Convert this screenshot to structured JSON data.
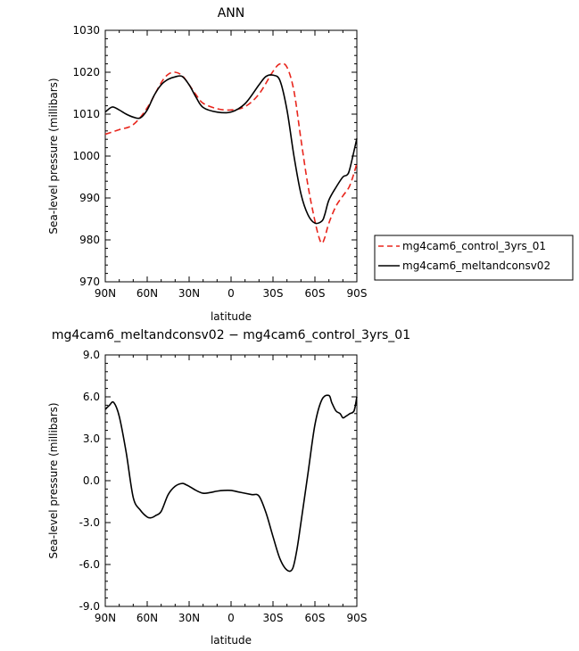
{
  "chart_data": [
    {
      "type": "line",
      "title": "ANN",
      "xlabel": "latitude",
      "ylabel": "Sea-level pressure (millibars)",
      "xlim": [
        90,
        -90
      ],
      "ylim": [
        970,
        1030
      ],
      "grid": false,
      "xticks": [
        90,
        60,
        30,
        0,
        -30,
        -60,
        -90
      ],
      "xtick_labels": [
        "90N",
        "60N",
        "30N",
        "0",
        "30S",
        "60S",
        "90S"
      ],
      "yticks": [
        970,
        980,
        990,
        1000,
        1010,
        1020,
        1030
      ],
      "ytick_labels": [
        "970",
        "980",
        "990",
        "1000",
        "1010",
        "1020",
        "1030"
      ],
      "legend_position": "outside-right",
      "series": [
        {
          "name": "mg4cam6_control_3yrs_01",
          "color": "#e8261d",
          "dash": "dashed",
          "x": [
            90,
            80,
            70,
            60,
            50,
            45,
            40,
            35,
            30,
            25,
            20,
            10,
            0,
            -10,
            -20,
            -30,
            -35,
            -40,
            -45,
            -50,
            -55,
            -60,
            -63,
            -65,
            -67,
            -70,
            -75,
            -80,
            -85,
            -90
          ],
          "y": [
            1005.2,
            1006.3,
            1007.5,
            1011.5,
            1017.5,
            1019.5,
            1020.0,
            1019.2,
            1017.0,
            1014.6,
            1012.6,
            1011.3,
            1011.0,
            1011.8,
            1014.8,
            1020.2,
            1022.0,
            1021.2,
            1015.5,
            1004.0,
            993.0,
            984.5,
            980.5,
            979.2,
            980.5,
            984.0,
            988.0,
            990.5,
            993.0,
            998.2
          ]
        },
        {
          "name": "mg4cam6_meltandconsv02",
          "color": "#000000",
          "dash": "solid",
          "x": [
            90,
            85,
            80,
            75,
            70,
            65,
            60,
            55,
            50,
            45,
            40,
            35,
            30,
            25,
            20,
            10,
            0,
            -10,
            -20,
            -25,
            -30,
            -35,
            -40,
            -45,
            -50,
            -55,
            -60,
            -65,
            -67,
            -70,
            -75,
            -80,
            -83,
            -85,
            -90
          ],
          "y": [
            1010.5,
            1011.7,
            1011.0,
            1010.0,
            1009.3,
            1009.1,
            1011.0,
            1014.5,
            1017.0,
            1018.3,
            1018.9,
            1019.0,
            1017.0,
            1014.0,
            1011.6,
            1010.5,
            1010.5,
            1012.5,
            1017.0,
            1019.0,
            1019.3,
            1018.0,
            1011.0,
            1000.0,
            991.0,
            986.0,
            984.0,
            984.5,
            986.0,
            989.5,
            992.5,
            995.0,
            995.5,
            997.0,
            1004.2
          ]
        }
      ]
    },
    {
      "type": "line",
      "title": "mg4cam6_meltandconsv02 − mg4cam6_control_3yrs_01",
      "xlabel": "latitude",
      "ylabel": "Sea-level pressure (millibars)",
      "xlim": [
        90,
        -90
      ],
      "ylim": [
        -9,
        9
      ],
      "grid": false,
      "xticks": [
        90,
        60,
        30,
        0,
        -30,
        -60,
        -90
      ],
      "xtick_labels": [
        "90N",
        "60N",
        "30N",
        "0",
        "30S",
        "60S",
        "90S"
      ],
      "yticks": [
        -9,
        -6,
        -3,
        0,
        3,
        6,
        9
      ],
      "ytick_labels": [
        "-9.0",
        "-6.0",
        "-3.0",
        "0.0",
        "3.0",
        "6.0",
        "9.0"
      ],
      "series": [
        {
          "color": "#000000",
          "dash": "solid",
          "x": [
            90,
            87,
            84,
            80,
            75,
            70,
            65,
            60,
            57,
            54,
            50,
            45,
            40,
            35,
            32,
            30,
            25,
            20,
            15,
            10,
            5,
            0,
            -5,
            -10,
            -15,
            -20,
            -25,
            -30,
            -35,
            -40,
            -44,
            -47,
            -50,
            -55,
            -60,
            -65,
            -70,
            -72,
            -75,
            -78,
            -80,
            -82,
            -85,
            -88,
            -90
          ],
          "y": [
            5.1,
            5.4,
            5.6,
            4.6,
            2.0,
            -1.2,
            -2.1,
            -2.6,
            -2.65,
            -2.5,
            -2.2,
            -1.0,
            -0.4,
            -0.2,
            -0.3,
            -0.4,
            -0.7,
            -0.9,
            -0.85,
            -0.75,
            -0.7,
            -0.7,
            -0.8,
            -0.9,
            -1.0,
            -1.1,
            -2.3,
            -4.0,
            -5.6,
            -6.4,
            -6.3,
            -5.0,
            -3.0,
            0.5,
            4.0,
            5.8,
            6.1,
            5.6,
            5.0,
            4.8,
            4.5,
            4.6,
            4.8,
            5.0,
            6.0
          ]
        }
      ]
    }
  ]
}
